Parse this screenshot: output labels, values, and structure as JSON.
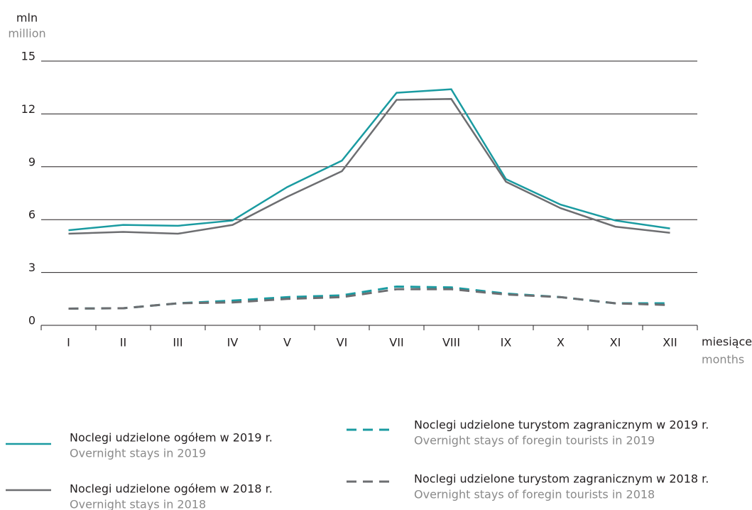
{
  "chart_data": {
    "type": "line",
    "ylabel": "mln",
    "ylabel_en": "million",
    "xlabel": "miesiące",
    "xlabel_en": "months",
    "categories": [
      "I",
      "II",
      "III",
      "IV",
      "V",
      "VI",
      "VII",
      "VIII",
      "IX",
      "X",
      "XI",
      "XII"
    ],
    "ylim": [
      0,
      15
    ],
    "yticks": [
      0,
      3,
      6,
      9,
      12,
      15
    ],
    "grid": true,
    "series": [
      {
        "name": "Noclegi udzielone  ogółem w 2019 r.",
        "name_en": "Overnight stays  in 2019",
        "color": "#1a9ba1",
        "style": "solid",
        "values": [
          5.4,
          5.7,
          5.65,
          5.95,
          7.85,
          9.35,
          13.2,
          13.4,
          8.3,
          6.85,
          5.95,
          5.5
        ]
      },
      {
        "name": "Noclegi udzielone ogółem w 2018 r.",
        "name_en": "Overnight stays in 2018",
        "color": "#6d6e71",
        "style": "solid",
        "values": [
          5.2,
          5.3,
          5.2,
          5.7,
          7.3,
          8.75,
          12.8,
          12.85,
          8.15,
          6.65,
          5.6,
          5.25
        ]
      },
      {
        "name": "Noclegi udzielone  turystom zagranicznym w 2019 r.",
        "name_en": "Overnight stays of foregin tourists in 2019",
        "color": "#1a9ba1",
        "style": "dashed",
        "values": [
          0.95,
          0.97,
          1.25,
          1.4,
          1.6,
          1.7,
          2.2,
          2.15,
          1.8,
          1.6,
          1.25,
          1.25
        ]
      },
      {
        "name": "Noclegi udzielone  turystom zagranicznym w 2018 r.",
        "name_en": "Overnight stays of foregin tourists in 2018",
        "color": "#6d6e71",
        "style": "dashed",
        "values": [
          0.95,
          0.97,
          1.25,
          1.3,
          1.5,
          1.6,
          2.05,
          2.05,
          1.75,
          1.6,
          1.25,
          1.15
        ]
      }
    ]
  }
}
